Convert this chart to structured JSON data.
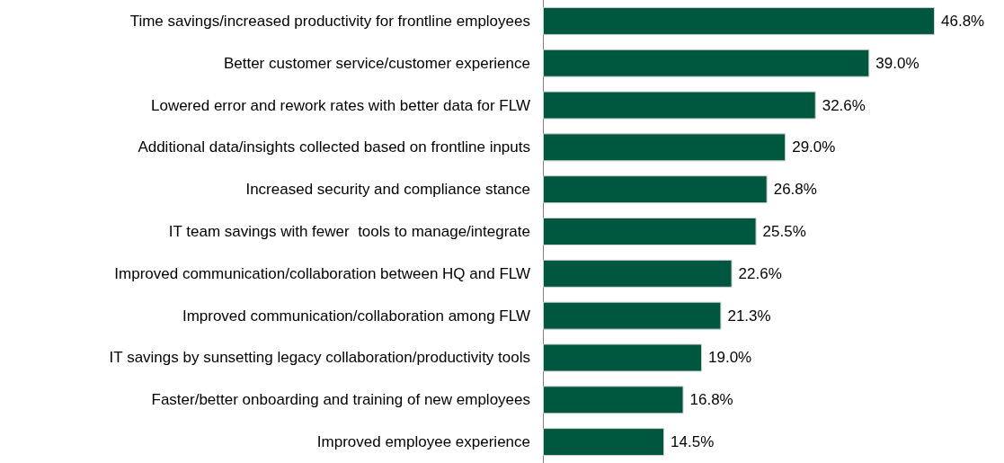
{
  "chart_data": {
    "type": "bar",
    "orientation": "horizontal",
    "categories": [
      "Time savings/increased productivity for frontline employees",
      "Better customer service/customer experience",
      "Lowered error and rework rates with better data for FLW",
      "Additional data/insights collected based on frontline inputs",
      "Increased security and compliance stance",
      "IT team savings with fewer  tools to manage/integrate",
      "Improved communication/collaboration between HQ and FLW",
      "Improved communication/collaboration among FLW",
      "IT savings by sunsetting legacy collaboration/productivity tools",
      "Faster/better onboarding and training of new employees",
      "Improved employee experience"
    ],
    "values": [
      46.8,
      39.0,
      32.6,
      29.0,
      26.8,
      25.5,
      22.6,
      21.3,
      19.0,
      16.8,
      14.5
    ],
    "value_labels": [
      "46.8%",
      "39.0%",
      "32.6%",
      "29.0%",
      "26.8%",
      "25.5%",
      "22.6%",
      "21.3%",
      "19.0%",
      "16.8%",
      "14.5%"
    ],
    "color": "#00573f"
  }
}
